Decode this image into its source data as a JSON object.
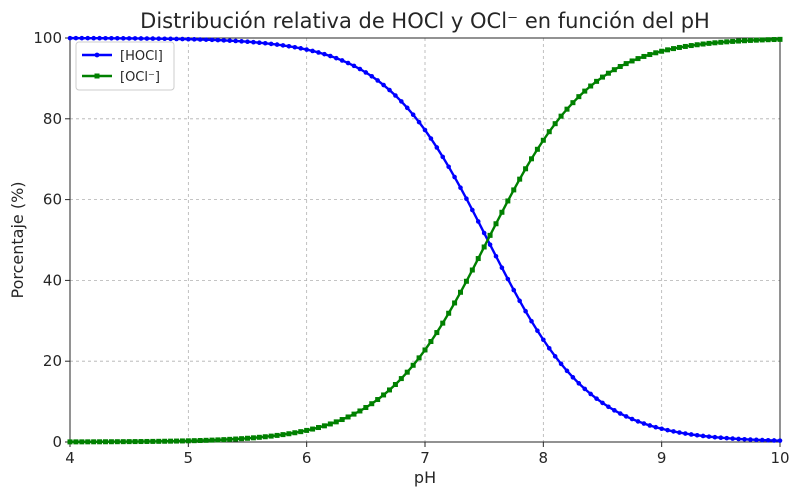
{
  "chart_data": {
    "type": "line",
    "title": "Distribución relativa de HOCl y OCl⁻ en función del pH",
    "xlabel": "pH",
    "ylabel": "Porcentaje (%)",
    "xlim": [
      4,
      10
    ],
    "ylim": [
      0,
      100
    ],
    "xticks": [
      "4",
      "5",
      "6",
      "7",
      "8",
      "9",
      "10"
    ],
    "yticks": [
      "0",
      "20",
      "40",
      "60",
      "80",
      "100"
    ],
    "grid": true,
    "legend_position": "top-left",
    "pKa": 7.53,
    "x": {
      "start": 4,
      "end": 10,
      "step": 0.05
    },
    "series": [
      {
        "name": "[HOCl]",
        "color": "#0000ff",
        "marker": "circle",
        "formula": "100/(1+10^(pH-pKa))"
      },
      {
        "name": "[OCl⁻]",
        "color": "#008000",
        "marker": "square",
        "formula": "100-100/(1+10^(pH-pKa))"
      }
    ]
  }
}
